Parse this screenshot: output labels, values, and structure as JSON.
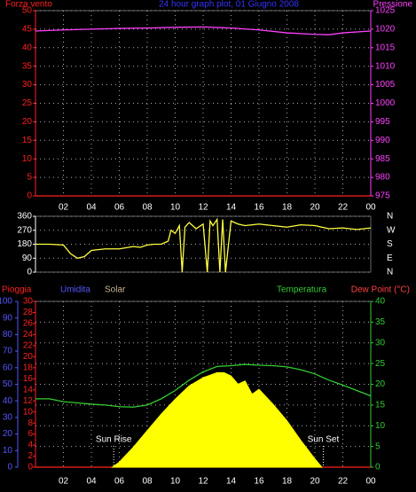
{
  "chart_data": [
    {
      "type": "line",
      "title": "24 hour graph plot, 01 Giugno 2008",
      "title_color": "#3333ff",
      "xlim": [
        0,
        24
      ],
      "xticks": [
        {
          "value": 2,
          "label": "02"
        },
        {
          "value": 4,
          "label": "04"
        },
        {
          "value": 6,
          "label": "06"
        },
        {
          "value": 8,
          "label": "08"
        },
        10,
        12,
        14,
        16,
        18,
        20,
        22,
        {
          "value": 24,
          "label": "00"
        }
      ],
      "ylim": [
        0,
        50
      ],
      "yticks": [
        0,
        5,
        10,
        15,
        20,
        25,
        30,
        35,
        40,
        45,
        50
      ],
      "ycolor": "#ff2020",
      "y2lim": [
        975,
        1025
      ],
      "y2ticks": [
        975,
        980,
        985,
        990,
        995,
        1000,
        1005,
        1010,
        1015,
        1020,
        1025
      ],
      "y2color": "#ff40ff",
      "grid": true,
      "series": [
        {
          "name": "Forza vento",
          "color": "#ff2020",
          "axis": "y",
          "x": [
            0,
            24
          ],
          "values": [
            0,
            0
          ]
        },
        {
          "name": "Pressione",
          "color": "#ff40ff",
          "axis": "y2",
          "x": [
            0,
            2,
            4,
            6,
            8,
            10,
            12,
            14,
            16,
            18,
            20,
            21,
            22,
            24
          ],
          "values": [
            1019.5,
            1019.8,
            1020,
            1020.2,
            1020.3,
            1020.5,
            1020.6,
            1020.3,
            1019.8,
            1019,
            1018.6,
            1018.5,
            1019,
            1019.5
          ]
        }
      ]
    },
    {
      "type": "line",
      "xlim": [
        0,
        24
      ],
      "ylim": [
        0,
        360
      ],
      "yticks": [
        0,
        90,
        180,
        270,
        360
      ],
      "ycolor": "#ffffff",
      "y2lim": [
        0,
        360
      ],
      "y2ticks": [
        {
          "value": 0,
          "label": "N"
        },
        {
          "value": 90,
          "label": "E"
        },
        {
          "value": 180,
          "label": "S"
        },
        {
          "value": 270,
          "label": "W"
        },
        {
          "value": 360,
          "label": "N"
        }
      ],
      "y2color": "#ffffff",
      "grid": true,
      "series": [
        {
          "color": "#ffff40",
          "axis": "y",
          "x": [
            0,
            1,
            2,
            2.5,
            3,
            3.5,
            4,
            5,
            6,
            7,
            7.5,
            8,
            8.5,
            9,
            9.5,
            9.7,
            10,
            10.3,
            10.5,
            10.7,
            11,
            11.5,
            12,
            12.3,
            12.5,
            12.7,
            13,
            13.2,
            13.4,
            13.6,
            14,
            14.5,
            15,
            16,
            17,
            18,
            19,
            20,
            21,
            22,
            23,
            24
          ],
          "values": [
            180,
            180,
            175,
            120,
            90,
            100,
            140,
            150,
            150,
            165,
            160,
            175,
            180,
            180,
            200,
            270,
            250,
            300,
            0,
            290,
            320,
            280,
            310,
            0,
            330,
            300,
            340,
            0,
            340,
            0,
            330,
            310,
            300,
            310,
            300,
            290,
            305,
            300,
            280,
            285,
            275,
            285
          ]
        }
      ]
    },
    {
      "type": "line",
      "xlim": [
        0,
        24
      ],
      "xticks": [
        {
          "value": 2,
          "label": "02"
        },
        {
          "value": 4,
          "label": "04"
        },
        {
          "value": 6,
          "label": "06"
        },
        {
          "value": 8,
          "label": "08"
        },
        10,
        12,
        14,
        16,
        18,
        20,
        22,
        {
          "value": 24,
          "label": "00"
        }
      ],
      "ylim": [
        0,
        30
      ],
      "yticks": [
        0,
        2,
        4,
        6,
        8,
        10,
        12,
        14,
        16,
        18,
        20,
        22,
        24,
        26,
        28,
        30
      ],
      "ycolor": "#ff2020",
      "y3lim": [
        0,
        100
      ],
      "y3ticks": [
        0,
        10,
        20,
        30,
        40,
        50,
        60,
        70,
        80,
        90,
        100
      ],
      "y3color": "#5555ff",
      "y2lim": [
        0,
        40
      ],
      "y2ticks": [
        0,
        5,
        10,
        15,
        20,
        25,
        30,
        35,
        40
      ],
      "y2color": "#33cc33",
      "grid": true,
      "series": [
        {
          "name": "Pioggia",
          "color": "#ff2020",
          "axis": "y",
          "x": [
            0,
            24
          ],
          "values": [
            0,
            0
          ]
        },
        {
          "name": "Umidita",
          "color": "#5555ff",
          "axis": "y3",
          "x": [],
          "values": []
        },
        {
          "name": "Solar",
          "name_color": "#c8b48c",
          "color": "#ffff00",
          "kind": "area",
          "axis": "y3",
          "x": [
            5.5,
            6,
            7,
            8,
            9,
            10,
            11,
            12,
            13,
            13.5,
            14,
            14.5,
            15,
            15.5,
            16,
            17,
            18,
            19,
            20,
            20.5
          ],
          "values": [
            0,
            3,
            12,
            22,
            32,
            41,
            49,
            54,
            57,
            57,
            55,
            50,
            52,
            44,
            47,
            38,
            28,
            16,
            5,
            0
          ]
        },
        {
          "name": "Temperatura",
          "color": "#33cc33",
          "axis": "y2",
          "x": [
            0,
            1,
            2,
            3,
            4,
            5,
            6,
            7,
            8,
            9,
            10,
            11,
            12,
            13,
            14,
            15,
            16,
            17,
            18,
            19,
            20,
            21,
            22,
            23,
            24
          ],
          "values": [
            16.5,
            16.5,
            15.8,
            15.5,
            15.2,
            15,
            14.6,
            14.5,
            15,
            16.5,
            18.5,
            21,
            23,
            24.3,
            24.5,
            24.8,
            24.6,
            24.5,
            24.2,
            23.5,
            22.5,
            21,
            19.8,
            18.5,
            17.2
          ]
        },
        {
          "name": "Dew Point (°C)",
          "color": "#ff4040",
          "axis": "y2",
          "x": [],
          "values": []
        }
      ],
      "annotations": [
        {
          "text": "Sun Rise",
          "x": 5.6
        },
        {
          "text": "Sun Set",
          "x": 20.6
        }
      ]
    }
  ]
}
